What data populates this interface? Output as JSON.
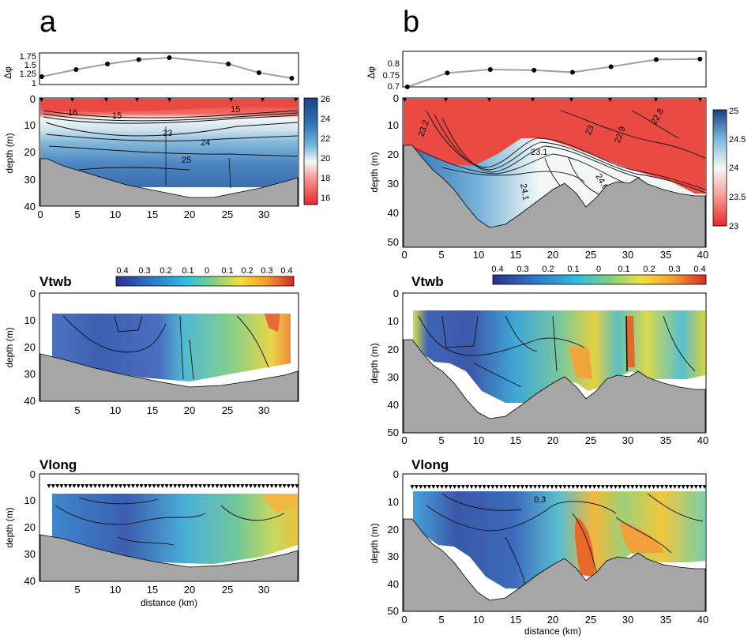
{
  "panels": {
    "a": {
      "label": "a"
    },
    "b": {
      "label": "b"
    }
  },
  "labels": {
    "dphi": "Δφ",
    "depth": "depth (m)",
    "distance": "distance (km)",
    "vtwb": "Vtwb",
    "vlong": "Vlong"
  },
  "colors": {
    "bathymetry": "#a6a6a6",
    "frame": "#000000",
    "dphi_line": "#a0a0a0",
    "salinity_ramp": [
      "#e8262b",
      "#f59a93",
      "#f5faf8",
      "#79b8dc",
      "#2f78b8",
      "#1c3e87"
    ],
    "velocity_ramp": [
      "#2b2f8c",
      "#2e78c8",
      "#2fbfe0",
      "#7fd17f",
      "#f2e03a",
      "#f49a2c",
      "#d62a22"
    ]
  },
  "chart_data": [
    {
      "id": "a-dphi",
      "type": "line",
      "ylabel": "Δφ",
      "x": [
        0.2,
        4.8,
        9,
        13.2,
        17.3,
        25.2,
        29.3,
        33.7
      ],
      "y": [
        1.2,
        1.38,
        1.52,
        1.63,
        1.68,
        1.52,
        1.3,
        1.16
      ],
      "xlim": [
        0,
        34.5
      ],
      "ylim": [
        1,
        1.8
      ],
      "yticks": [
        "1.75",
        "1.5",
        "1.25",
        "1"
      ]
    },
    {
      "id": "a-section",
      "type": "heatmap",
      "ylabel": "depth (m)",
      "xlim": [
        0,
        34.5
      ],
      "ylim": [
        40,
        0
      ],
      "xticks": [
        "0",
        "5",
        "10",
        "15",
        "20",
        "25",
        "30"
      ],
      "yticks": [
        "0",
        "10",
        "20",
        "30",
        "40"
      ],
      "contour_labels": [
        "16",
        "15",
        "23",
        "24",
        "25",
        "15"
      ],
      "colorbar": {
        "min": 15,
        "max": 26,
        "ticks": [
          "26",
          "24",
          "22",
          "20",
          "18",
          "16"
        ]
      },
      "bottom_depth_m": [
        22,
        24,
        27,
        30,
        33,
        35,
        37,
        38,
        37,
        35,
        32,
        28
      ]
    },
    {
      "id": "a-vtwb",
      "type": "heatmap",
      "title": "Vtwb",
      "ylabel": "depth (m)",
      "xlim": [
        0,
        34.5
      ],
      "ylim": [
        40,
        0
      ],
      "xticks": [
        "0",
        "5",
        "10",
        "15",
        "20",
        "25",
        "30"
      ],
      "yticks": [
        "0",
        "10",
        "20",
        "30",
        "40"
      ],
      "colorbar": {
        "min": -0.4,
        "max": 0.4,
        "ticks": [
          "0.4",
          "0.3",
          "0.2",
          "0.1",
          "0",
          "0.1",
          "0.2",
          "0.3",
          "0.4"
        ]
      }
    },
    {
      "id": "a-vlong",
      "type": "heatmap",
      "title": "Vlong",
      "ylabel": "depth (m)",
      "xlabel": "distance (km)",
      "xlim": [
        0,
        34.5
      ],
      "ylim": [
        40,
        0
      ],
      "xticks": [
        "0",
        "5",
        "10",
        "15",
        "20",
        "25",
        "30"
      ],
      "yticks": [
        "0",
        "10",
        "20",
        "30",
        "40"
      ]
    },
    {
      "id": "b-dphi",
      "type": "line",
      "ylabel": "Δφ",
      "x": [
        0.5,
        5.8,
        11.5,
        17.3,
        22.4,
        27.5,
        33.5,
        39.3
      ],
      "y": [
        0.7,
        0.76,
        0.775,
        0.772,
        0.763,
        0.787,
        0.818,
        0.82
      ],
      "xlim": [
        0,
        40
      ],
      "ylim": [
        0.7,
        0.85
      ],
      "yticks": [
        "0.8",
        "0.75",
        "0.7"
      ]
    },
    {
      "id": "b-section",
      "type": "heatmap",
      "ylabel": "depth (m)",
      "xlim": [
        0,
        40
      ],
      "ylim": [
        50,
        0
      ],
      "xticks": [
        "0",
        "5",
        "10",
        "15",
        "20",
        "25",
        "30",
        "35",
        "40"
      ],
      "yticks": [
        "0",
        "10",
        "20",
        "30",
        "40",
        "50"
      ],
      "contour_labels": [
        "23.2",
        "23.1",
        "22.9",
        "22.8",
        "23",
        "24.1",
        "24.6",
        "24"
      ],
      "colorbar": {
        "min": 23,
        "max": 25,
        "ticks": [
          "25",
          "24.5",
          "24",
          "23.5",
          "23"
        ]
      }
    },
    {
      "id": "b-vtwb",
      "type": "heatmap",
      "title": "Vtwb",
      "ylabel": "depth (m)",
      "xlim": [
        0,
        40
      ],
      "ylim": [
        50,
        0
      ],
      "xticks": [
        "0",
        "5",
        "10",
        "15",
        "20",
        "25",
        "30",
        "35",
        "40"
      ],
      "yticks": [
        "0",
        "10",
        "20",
        "30",
        "40",
        "50"
      ],
      "colorbar": {
        "min": -0.4,
        "max": 0.4,
        "ticks": [
          "0.4",
          "0.3",
          "0.2",
          "0.1",
          "0",
          "0.1",
          "0.2",
          "0.3",
          "0.4"
        ]
      }
    },
    {
      "id": "b-vlong",
      "type": "heatmap",
      "title": "Vlong",
      "ylabel": "depth (m)",
      "xlabel": "distance (km)",
      "xlim": [
        0,
        40
      ],
      "ylim": [
        50,
        0
      ],
      "xticks": [
        "0",
        "5",
        "10",
        "15",
        "20",
        "25",
        "30",
        "35",
        "40"
      ],
      "yticks": [
        "0",
        "10",
        "20",
        "30",
        "40",
        "50"
      ],
      "contour_labels": [
        "0.3"
      ]
    }
  ]
}
